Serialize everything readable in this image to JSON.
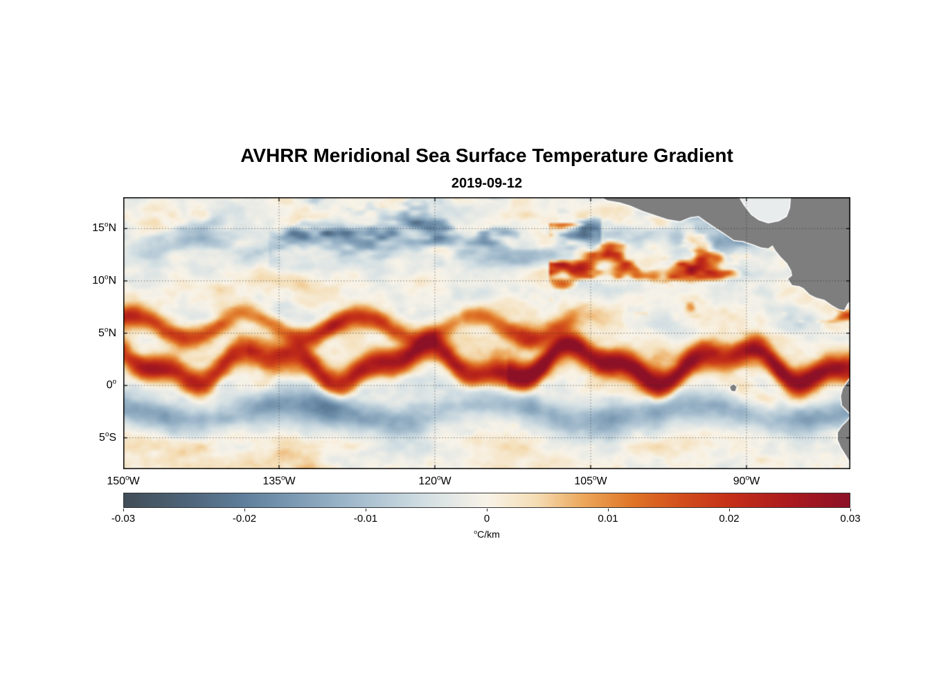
{
  "page": {
    "background": "#ffffff"
  },
  "chart": {
    "title": "AVHRR Meridional Sea Surface Temperature Gradient",
    "subtitle": "2019-09-12"
  },
  "chart_data": {
    "type": "heatmap",
    "title": "AVHRR Meridional Sea Surface Temperature Gradient",
    "subtitle": "2019-09-12",
    "variable": "meridional sea surface temperature gradient",
    "units_label": {
      "sup": "o",
      "text": "C/km"
    },
    "lon_range": [
      -150,
      -80
    ],
    "lat_range": [
      -8,
      18
    ],
    "x_ticks": [
      {
        "value": -150,
        "base": "150",
        "sup": "o",
        "suffix": "W"
      },
      {
        "value": -135,
        "base": "135",
        "sup": "o",
        "suffix": "W"
      },
      {
        "value": -120,
        "base": "120",
        "sup": "o",
        "suffix": "W"
      },
      {
        "value": -105,
        "base": "105",
        "sup": "o",
        "suffix": "W"
      },
      {
        "value": -90,
        "base": "90",
        "sup": "o",
        "suffix": "W"
      }
    ],
    "y_ticks": [
      {
        "value": 15,
        "base": "15",
        "sup": "o",
        "suffix": "N"
      },
      {
        "value": 10,
        "base": "10",
        "sup": "o",
        "suffix": "N"
      },
      {
        "value": 5,
        "base": "5",
        "sup": "o",
        "suffix": "N"
      },
      {
        "value": 0,
        "base": "0",
        "sup": "o",
        "suffix": ""
      },
      {
        "value": -5,
        "base": "5",
        "sup": "o",
        "suffix": "S"
      }
    ],
    "grid": {
      "lats": [
        15,
        10,
        5,
        0,
        -5
      ],
      "lons": [
        -135,
        -120,
        -105,
        -90
      ],
      "style": "dotted",
      "color": "rgba(25,25,25,0.55)"
    },
    "colorbar": {
      "orientation": "horizontal",
      "min": -0.03,
      "max": 0.03,
      "ticks": [
        -0.03,
        -0.02,
        -0.01,
        0,
        0.01,
        0.02,
        0.03
      ],
      "tick_labels": [
        "-0.03",
        "-0.02",
        "-0.01",
        "0",
        "0.01",
        "0.02",
        "0.03"
      ]
    },
    "colormap": [
      {
        "v": -0.03,
        "c": "#414d57"
      },
      {
        "v": -0.025,
        "c": "#4d6377"
      },
      {
        "v": -0.02,
        "c": "#5f7f9c"
      },
      {
        "v": -0.015,
        "c": "#82a0b8"
      },
      {
        "v": -0.01,
        "c": "#a9c0d0"
      },
      {
        "v": -0.005,
        "c": "#d3dfe3"
      },
      {
        "v": 0.0,
        "c": "#f8f3e8"
      },
      {
        "v": 0.004,
        "c": "#f4ddb5"
      },
      {
        "v": 0.008,
        "c": "#eca75a"
      },
      {
        "v": 0.012,
        "c": "#df7527"
      },
      {
        "v": 0.016,
        "c": "#d24e1c"
      },
      {
        "v": 0.02,
        "c": "#c43018"
      },
      {
        "v": 0.025,
        "c": "#ab1a1e"
      },
      {
        "v": 0.03,
        "c": "#8c1127"
      }
    ],
    "land": {
      "color": "#7e7e7e",
      "coast_halo": "#ffffff",
      "polygons": [
        {
          "name": "central-america",
          "points": [
            [
              -104.5,
              18.3
            ],
            [
              -103.4,
              17.7
            ],
            [
              -102.2,
              17.5
            ],
            [
              -101.2,
              17.2
            ],
            [
              -100.0,
              16.7
            ],
            [
              -98.8,
              16.3
            ],
            [
              -97.6,
              15.9
            ],
            [
              -96.4,
              15.7
            ],
            [
              -95.4,
              16.1
            ],
            [
              -94.6,
              16.2
            ],
            [
              -93.9,
              15.7
            ],
            [
              -93.0,
              15.1
            ],
            [
              -92.2,
              14.6
            ],
            [
              -91.2,
              13.9
            ],
            [
              -90.3,
              13.8
            ],
            [
              -89.4,
              13.5
            ],
            [
              -88.6,
              13.2
            ],
            [
              -87.9,
              13.1
            ],
            [
              -87.5,
              13.4
            ],
            [
              -87.2,
              12.9
            ],
            [
              -86.7,
              12.3
            ],
            [
              -86.1,
              11.7
            ],
            [
              -85.7,
              11.0
            ],
            [
              -85.6,
              10.5
            ],
            [
              -86.0,
              10.2
            ],
            [
              -85.6,
              9.6
            ],
            [
              -84.9,
              9.5
            ],
            [
              -84.5,
              9.3
            ],
            [
              -83.9,
              8.7
            ],
            [
              -83.3,
              8.4
            ],
            [
              -82.5,
              8.2
            ],
            [
              -81.8,
              7.7
            ],
            [
              -81.1,
              7.3
            ],
            [
              -80.6,
              7.2
            ],
            [
              -80.3,
              7.8
            ],
            [
              -79.7,
              8.4
            ],
            [
              -79.5,
              18.3
            ]
          ]
        },
        {
          "name": "caribbean-sea-notch",
          "fill": "#e8eced",
          "points": [
            [
              -90.8,
              18.3
            ],
            [
              -90.2,
              17.3
            ],
            [
              -89.5,
              16.4
            ],
            [
              -88.8,
              15.9
            ],
            [
              -87.9,
              15.6
            ],
            [
              -86.9,
              15.8
            ],
            [
              -86.2,
              16.2
            ],
            [
              -85.9,
              17.0
            ],
            [
              -85.8,
              18.3
            ]
          ]
        },
        {
          "name": "south-america",
          "points": [
            [
              -79.5,
              1.0
            ],
            [
              -79.9,
              0.8
            ],
            [
              -80.3,
              0.3
            ],
            [
              -80.7,
              -0.3
            ],
            [
              -80.9,
              -1.0
            ],
            [
              -80.8,
              -1.9
            ],
            [
              -80.3,
              -2.4
            ],
            [
              -79.9,
              -2.8
            ],
            [
              -80.2,
              -3.3
            ],
            [
              -80.8,
              -3.9
            ],
            [
              -81.2,
              -4.5
            ],
            [
              -81.2,
              -5.2
            ],
            [
              -80.9,
              -5.9
            ],
            [
              -80.4,
              -6.7
            ],
            [
              -79.9,
              -7.5
            ],
            [
              -79.5,
              -8.3
            ]
          ]
        },
        {
          "name": "galapagos-islands",
          "points": [
            [
              -91.6,
              -0.15
            ],
            [
              -91.25,
              0.1
            ],
            [
              -90.95,
              -0.15
            ],
            [
              -91.1,
              -0.55
            ],
            [
              -91.45,
              -0.5
            ]
          ]
        }
      ]
    },
    "field_model": {
      "background_noise_gradient": 0.006,
      "equatorial_front": {
        "lat_center": 2.0,
        "meander_amplitude_deg": 1.4,
        "meander_wavelength_deg": 15,
        "width_deg": 1.25,
        "peak_gradient": 0.024
      },
      "necc_front": {
        "lat_center": 5.6,
        "meander_amplitude_deg": 1.1,
        "meander_wavelength_deg": 11,
        "width_deg": 1.0,
        "peak_gradient": 0.02,
        "lon_max": -109
      },
      "south_equatorial_band": {
        "lat_center": -2.6,
        "width_deg": 1.6,
        "peak_gradient": -0.015
      }
    },
    "features": [
      "Strong positive (red) meridional SST gradient front meandering along 1-3N across the basin (tropical instability waves), strongest east of 110W reaching +0.03 C/km",
      "Secondary positive wavy front near 5-6N west of about 110W",
      "Band of negative gradient (blue, about -0.01 to -0.02 C/km) along 2-4S",
      "Scattered dark negative patches north of 14N between 135W and 105W; scattered positive patches 8-14N east of 105W",
      "Central America, Galapagos and northwestern South America masked in gray with white coastal halo; Caribbean appears as light notch near 90-86W at top"
    ]
  }
}
